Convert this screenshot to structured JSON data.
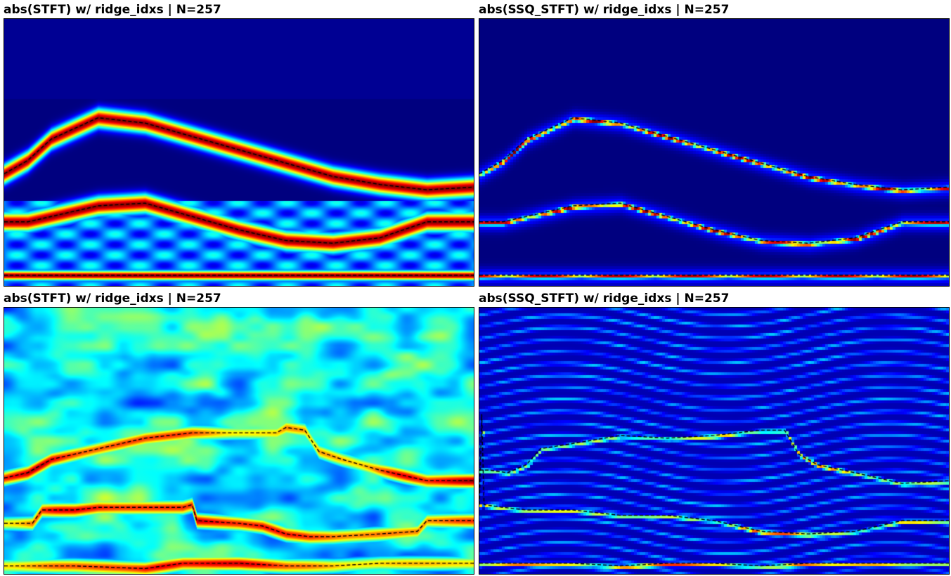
{
  "colors": {
    "bg": "#00007f",
    "ridge": "#000000"
  },
  "chart_data": [
    {
      "type": "heatmap",
      "title": "abs(STFT) w/ ridge_idxs | N=257",
      "colormap": "jet",
      "style": "smooth",
      "ridges": [
        [
          [
            0,
            0.58
          ],
          [
            0.05,
            0.53
          ],
          [
            0.1,
            0.45
          ],
          [
            0.2,
            0.37
          ],
          [
            0.3,
            0.39
          ],
          [
            0.4,
            0.44
          ],
          [
            0.5,
            0.49
          ],
          [
            0.6,
            0.54
          ],
          [
            0.7,
            0.59
          ],
          [
            0.8,
            0.62
          ],
          [
            0.9,
            0.64
          ],
          [
            1,
            0.63
          ]
        ],
        [
          [
            0,
            0.76
          ],
          [
            0.05,
            0.76
          ],
          [
            0.1,
            0.74
          ],
          [
            0.2,
            0.7
          ],
          [
            0.3,
            0.69
          ],
          [
            0.4,
            0.74
          ],
          [
            0.5,
            0.79
          ],
          [
            0.6,
            0.83
          ],
          [
            0.7,
            0.84
          ],
          [
            0.8,
            0.82
          ],
          [
            0.9,
            0.76
          ],
          [
            1,
            0.76
          ]
        ],
        [
          [
            0,
            0.96
          ],
          [
            1,
            0.96
          ]
        ]
      ]
    },
    {
      "type": "heatmap",
      "title": "abs(SSQ_STFT) w/ ridge_idxs | N=257",
      "colormap": "jet",
      "style": "sharp",
      "ridges": [
        [
          [
            0,
            0.58
          ],
          [
            0.05,
            0.53
          ],
          [
            0.1,
            0.45
          ],
          [
            0.2,
            0.37
          ],
          [
            0.3,
            0.39
          ],
          [
            0.4,
            0.44
          ],
          [
            0.5,
            0.49
          ],
          [
            0.6,
            0.54
          ],
          [
            0.7,
            0.59
          ],
          [
            0.8,
            0.62
          ],
          [
            0.9,
            0.64
          ],
          [
            1,
            0.63
          ]
        ],
        [
          [
            0,
            0.76
          ],
          [
            0.05,
            0.76
          ],
          [
            0.1,
            0.74
          ],
          [
            0.2,
            0.7
          ],
          [
            0.3,
            0.69
          ],
          [
            0.4,
            0.74
          ],
          [
            0.5,
            0.79
          ],
          [
            0.6,
            0.83
          ],
          [
            0.7,
            0.84
          ],
          [
            0.8,
            0.82
          ],
          [
            0.9,
            0.76
          ],
          [
            1,
            0.76
          ]
        ],
        [
          [
            0,
            0.96
          ],
          [
            1,
            0.96
          ]
        ]
      ]
    },
    {
      "type": "heatmap",
      "title": "abs(STFT) w/ ridge_idxs | N=257",
      "colormap": "jet",
      "style": "noisy",
      "ridges": [
        [
          [
            0,
            0.64
          ],
          [
            0.05,
            0.62
          ],
          [
            0.1,
            0.57
          ],
          [
            0.2,
            0.53
          ],
          [
            0.3,
            0.49
          ],
          [
            0.4,
            0.47
          ],
          [
            0.5,
            0.47
          ],
          [
            0.58,
            0.47
          ],
          [
            0.6,
            0.45
          ],
          [
            0.64,
            0.46
          ],
          [
            0.67,
            0.54
          ],
          [
            0.72,
            0.57
          ],
          [
            0.8,
            0.61
          ],
          [
            0.9,
            0.65
          ],
          [
            1,
            0.65
          ]
        ],
        [
          [
            0,
            0.81
          ],
          [
            0.06,
            0.81
          ],
          [
            0.08,
            0.76
          ],
          [
            0.15,
            0.76
          ],
          [
            0.2,
            0.75
          ],
          [
            0.3,
            0.75
          ],
          [
            0.38,
            0.75
          ],
          [
            0.4,
            0.74
          ],
          [
            0.41,
            0.8
          ],
          [
            0.5,
            0.81
          ],
          [
            0.55,
            0.82
          ],
          [
            0.6,
            0.85
          ],
          [
            0.65,
            0.86
          ],
          [
            0.7,
            0.86
          ],
          [
            0.8,
            0.85
          ],
          [
            0.88,
            0.84
          ],
          [
            0.9,
            0.8
          ],
          [
            1,
            0.8
          ]
        ],
        [
          [
            0,
            0.97
          ],
          [
            0.15,
            0.97
          ],
          [
            0.3,
            0.98
          ],
          [
            0.38,
            0.96
          ],
          [
            0.5,
            0.96
          ],
          [
            0.6,
            0.97
          ],
          [
            0.7,
            0.97
          ],
          [
            0.8,
            0.96
          ],
          [
            1,
            0.96
          ]
        ]
      ]
    },
    {
      "type": "heatmap",
      "title": "abs(SSQ_STFT) w/ ridge_idxs | N=257",
      "colormap": "jet",
      "style": "noisy-sharp",
      "ridges": [
        [
          [
            0,
            0.61
          ],
          [
            0.02,
            0.61
          ],
          [
            0.06,
            0.62
          ],
          [
            0.1,
            0.59
          ],
          [
            0.13,
            0.53
          ],
          [
            0.2,
            0.51
          ],
          [
            0.3,
            0.48
          ],
          [
            0.4,
            0.49
          ],
          [
            0.5,
            0.48
          ],
          [
            0.6,
            0.46
          ],
          [
            0.65,
            0.46
          ],
          [
            0.68,
            0.55
          ],
          [
            0.72,
            0.59
          ],
          [
            0.8,
            0.62
          ],
          [
            0.9,
            0.66
          ],
          [
            1,
            0.65
          ]
        ],
        [
          [
            0,
            0.74
          ],
          [
            0.005,
            0.4
          ],
          [
            0.01,
            0.74
          ],
          [
            0.05,
            0.75
          ],
          [
            0.1,
            0.76
          ],
          [
            0.2,
            0.76
          ],
          [
            0.3,
            0.78
          ],
          [
            0.4,
            0.78
          ],
          [
            0.5,
            0.8
          ],
          [
            0.6,
            0.84
          ],
          [
            0.7,
            0.85
          ],
          [
            0.8,
            0.84
          ],
          [
            0.9,
            0.8
          ],
          [
            1,
            0.8
          ]
        ],
        [
          [
            0,
            0.96
          ],
          [
            0.2,
            0.96
          ],
          [
            0.3,
            0.97
          ],
          [
            0.4,
            0.96
          ],
          [
            0.5,
            0.96
          ],
          [
            0.6,
            0.97
          ],
          [
            0.7,
            0.96
          ],
          [
            0.8,
            0.96
          ],
          [
            1,
            0.96
          ]
        ]
      ]
    }
  ]
}
